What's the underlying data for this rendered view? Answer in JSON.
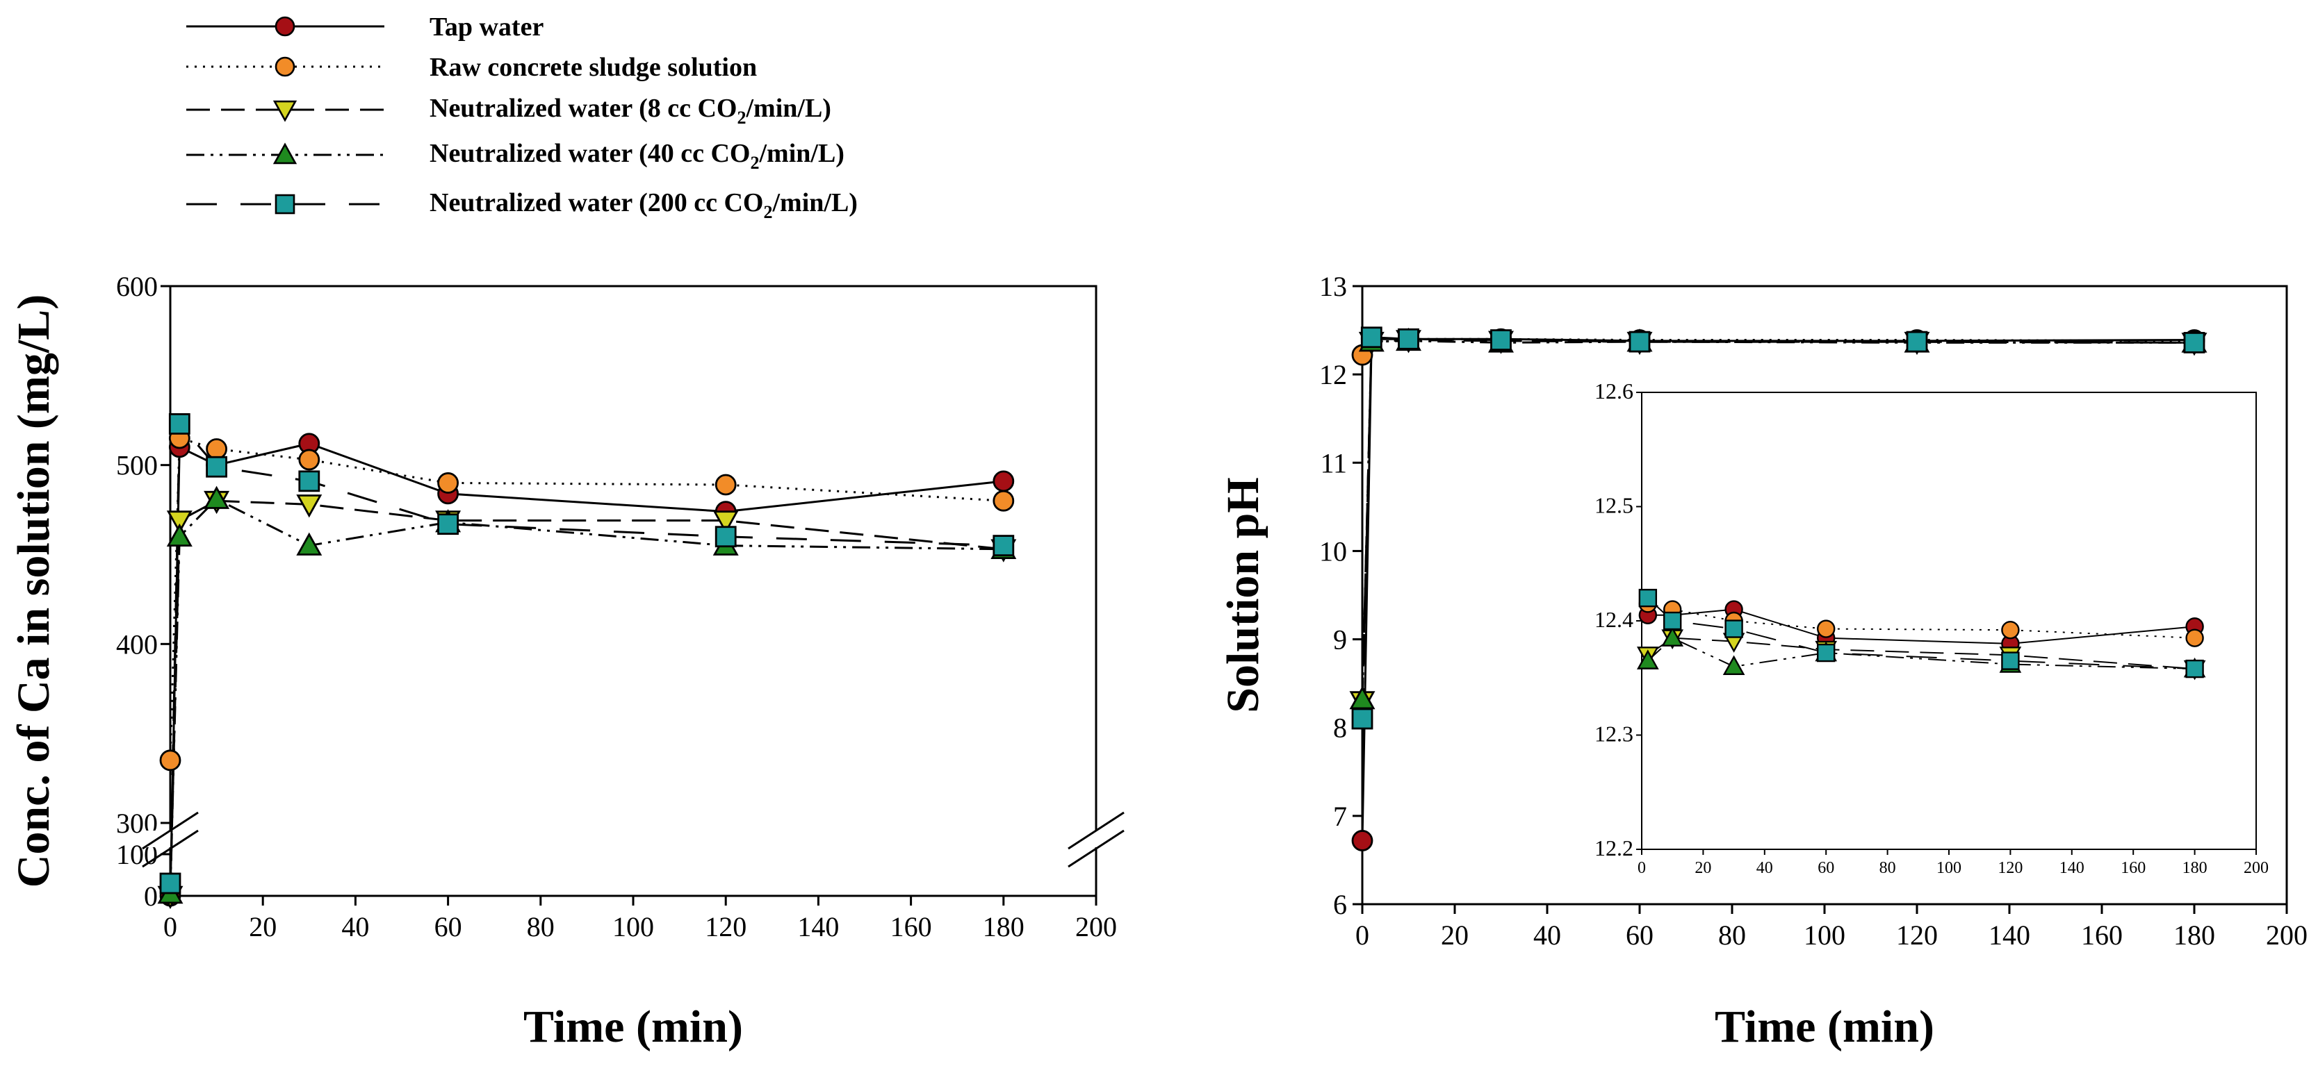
{
  "colors": {
    "tap": "#a50f15",
    "raw": "#f28c28",
    "n8": "#d4d41f",
    "n40": "#1f8a1f",
    "n200": "#1c9c9c"
  },
  "legend": {
    "tap": "Tap water",
    "raw": "Raw concrete sludge solution",
    "n8_pre": "Neutralized water (8 cc CO",
    "n8_sub": "2",
    "n8_post": "/min/L)",
    "n40_pre": "Neutralized water (40 cc CO",
    "n40_sub": "2",
    "n40_post": "/min/L)",
    "n200_pre": "Neutralized water (200 cc CO",
    "n200_sub": "2",
    "n200_post": "/min/L)"
  },
  "chart_data": [
    {
      "type": "line",
      "id": "ca",
      "xlabel": "Time (min)",
      "ylabel": "Conc. of Ca in solution (mg/L)",
      "xlim": [
        0,
        200
      ],
      "xticks": [
        0,
        20,
        40,
        60,
        80,
        100,
        120,
        140,
        160,
        180,
        200
      ],
      "ylim_upper": [
        300,
        600
      ],
      "yticks_upper": [
        300,
        400,
        500,
        600
      ],
      "ylim_lower": [
        0,
        100
      ],
      "yticks_lower": [
        0,
        100
      ],
      "series": [
        {
          "key": "tap",
          "marker": "circle",
          "x": [
            0,
            2,
            10,
            30,
            60,
            120,
            180
          ],
          "y": [
            0,
            510,
            500,
            512,
            484,
            474,
            491
          ]
        },
        {
          "key": "raw",
          "marker": "circle",
          "x": [
            0,
            2,
            10,
            30,
            60,
            120,
            180
          ],
          "y": [
            335,
            515,
            509,
            503,
            490,
            489,
            480
          ]
        },
        {
          "key": "n8",
          "marker": "tri-down",
          "x": [
            0,
            2,
            10,
            30,
            60,
            120,
            180
          ],
          "y": [
            0,
            469,
            480,
            478,
            469,
            469,
            453
          ]
        },
        {
          "key": "n40",
          "marker": "tri-up",
          "x": [
            0,
            2,
            10,
            30,
            60,
            120,
            180
          ],
          "y": [
            5,
            460,
            481,
            455,
            468,
            455,
            453
          ]
        },
        {
          "key": "n200",
          "marker": "square",
          "x": [
            0,
            2,
            10,
            30,
            60,
            120,
            180
          ],
          "y": [
            30,
            523,
            499,
            491,
            467,
            460,
            455
          ]
        }
      ]
    },
    {
      "type": "line",
      "id": "ph",
      "xlabel": "Time (min)",
      "ylabel": "Solution pH",
      "xlim": [
        0,
        200
      ],
      "xticks": [
        0,
        20,
        40,
        60,
        80,
        100,
        120,
        140,
        160,
        180,
        200
      ],
      "ylim": [
        6,
        13
      ],
      "yticks": [
        6,
        7,
        8,
        9,
        10,
        11,
        12,
        13
      ],
      "series": [
        {
          "key": "tap",
          "marker": "circle",
          "x": [
            0,
            2,
            10,
            30,
            60,
            120,
            180
          ],
          "y": [
            6.72,
            12.4,
            12.4,
            12.4,
            12.38,
            12.38,
            12.39
          ]
        },
        {
          "key": "raw",
          "marker": "circle",
          "x": [
            0,
            2,
            10,
            30,
            60,
            120,
            180
          ],
          "y": [
            12.22,
            12.41,
            12.4,
            12.4,
            12.39,
            12.39,
            12.38
          ]
        },
        {
          "key": "n8",
          "marker": "tri-down",
          "x": [
            0,
            2,
            10,
            30,
            60,
            120,
            180
          ],
          "y": [
            8.3,
            12.37,
            12.39,
            12.38,
            12.37,
            12.37,
            12.36
          ]
        },
        {
          "key": "n40",
          "marker": "tri-up",
          "x": [
            0,
            2,
            10,
            30,
            60,
            120,
            180
          ],
          "y": [
            8.32,
            12.37,
            12.38,
            12.36,
            12.37,
            12.36,
            12.36
          ]
        },
        {
          "key": "n200",
          "marker": "square",
          "x": [
            0,
            2,
            10,
            30,
            60,
            120,
            180
          ],
          "y": [
            8.1,
            12.42,
            12.4,
            12.39,
            12.37,
            12.37,
            12.36
          ]
        }
      ],
      "inset": {
        "xlim": [
          0,
          200
        ],
        "xticks": [
          0,
          20,
          40,
          60,
          80,
          100,
          120,
          140,
          160,
          180,
          200
        ],
        "ylim": [
          12.2,
          12.6
        ],
        "yticks": [
          12.2,
          12.3,
          12.4,
          12.5,
          12.6
        ],
        "series": [
          {
            "key": "tap",
            "marker": "circle",
            "x": [
              2,
              10,
              30,
              60,
              120,
              180
            ],
            "y": [
              12.405,
              12.405,
              12.41,
              12.385,
              12.38,
              12.395
            ]
          },
          {
            "key": "raw",
            "marker": "circle",
            "x": [
              2,
              10,
              30,
              60,
              120,
              180
            ],
            "y": [
              12.415,
              12.41,
              12.4,
              12.393,
              12.392,
              12.385
            ]
          },
          {
            "key": "n8",
            "marker": "tri-down",
            "x": [
              2,
              10,
              30,
              60,
              120,
              180
            ],
            "y": [
              12.37,
              12.385,
              12.382,
              12.375,
              12.37,
              12.358
            ]
          },
          {
            "key": "n40",
            "marker": "tri-up",
            "x": [
              2,
              10,
              30,
              60,
              120,
              180
            ],
            "y": [
              12.365,
              12.385,
              12.36,
              12.372,
              12.362,
              12.358
            ]
          },
          {
            "key": "n200",
            "marker": "square",
            "x": [
              2,
              10,
              30,
              60,
              120,
              180
            ],
            "y": [
              12.42,
              12.4,
              12.393,
              12.372,
              12.365,
              12.358
            ]
          }
        ]
      }
    }
  ]
}
